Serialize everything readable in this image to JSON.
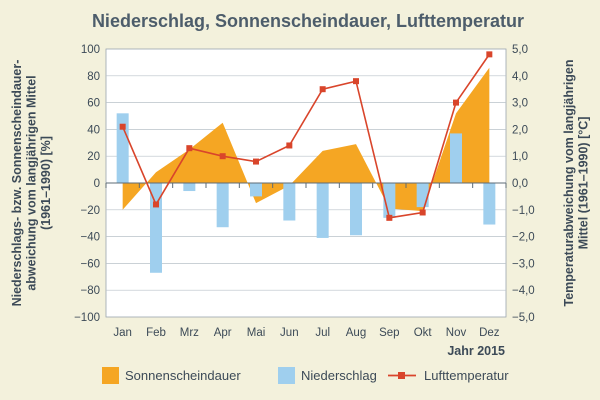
{
  "chart_data": {
    "type": "bar",
    "title": "Niederschlag, Sonnenscheindauer, Lufttemperatur",
    "categories": [
      "Jan",
      "Feb",
      "Mrz",
      "Apr",
      "Mai",
      "Jun",
      "Jul",
      "Aug",
      "Sep",
      "Okt",
      "Nov",
      "Dez"
    ],
    "year_label": "Jahr 2015",
    "y_left": {
      "label_lines": [
        "Niederschlags- bzw. Sonnenscheindauer-",
        "abweichung vom langjährigen Mittel",
        "(1961–1990) [%]"
      ],
      "min": -100,
      "max": 100,
      "tick_labels": [
        "100",
        "80",
        "60",
        "40",
        "20",
        "0",
        "−20",
        "−40",
        "−60",
        "−80",
        "−100"
      ]
    },
    "y_right": {
      "label_lines": [
        "Temperaturabweichung vom langjährigen",
        "Mittel (1961–1990) [°C]"
      ],
      "min": -5,
      "max": 5,
      "tick_labels": [
        "5,0",
        "4,0",
        "3,0",
        "2,0",
        "1,0",
        "0,0",
        "−1,0",
        "−2,0",
        "−3,0",
        "−4,0",
        "−5,0"
      ]
    },
    "series": [
      {
        "name": "Sonnenscheindauer",
        "kind": "area",
        "color": "#f5a623",
        "values": [
          -20,
          8,
          25,
          45,
          -15,
          -2,
          24,
          29,
          -19,
          -21,
          52,
          86
        ]
      },
      {
        "name": "Niederschlag",
        "kind": "bar",
        "color": "#9fcfee",
        "values": [
          52,
          -67,
          -6,
          -33,
          -10,
          -28,
          -41,
          -39,
          -26,
          -18,
          37,
          -31
        ]
      },
      {
        "name": "Lufttemperatur",
        "kind": "line",
        "color": "#d9452b",
        "axis": "right",
        "values": [
          2.1,
          -0.8,
          1.3,
          1.0,
          0.8,
          1.4,
          3.5,
          3.8,
          -1.3,
          -1.1,
          3.0,
          4.8
        ]
      }
    ],
    "grid": true,
    "legend": "bottom"
  }
}
